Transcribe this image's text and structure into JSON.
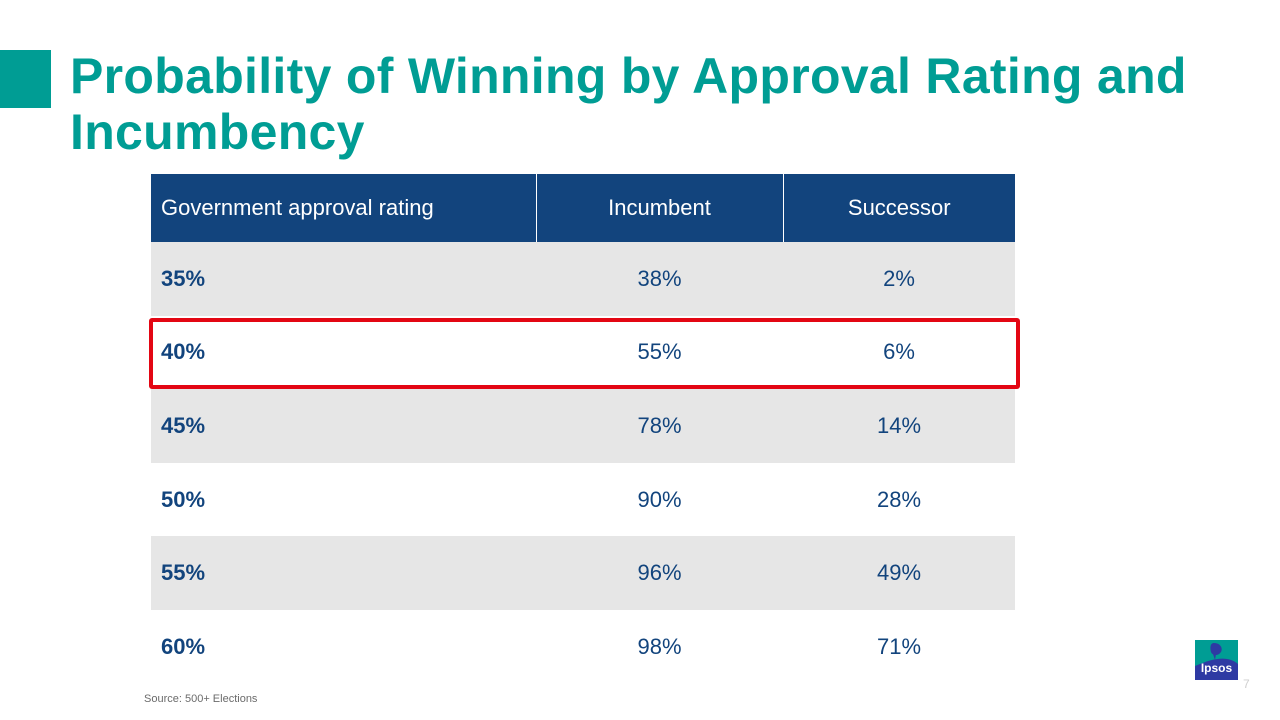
{
  "slide": {
    "title": "Probability of Winning by Approval Rating and Incumbency",
    "source": "Source: 500+ Elections",
    "page_number": "7",
    "logo_text": "Ipsos"
  },
  "table": {
    "headers": [
      "Government approval rating",
      "Incumbent",
      "Successor"
    ],
    "rows": [
      {
        "rating": "35%",
        "incumbent": "38%",
        "successor": "2%"
      },
      {
        "rating": "40%",
        "incumbent": "55%",
        "successor": "6%",
        "highlighted": true
      },
      {
        "rating": "45%",
        "incumbent": "78%",
        "successor": "14%"
      },
      {
        "rating": "50%",
        "incumbent": "90%",
        "successor": "28%"
      },
      {
        "rating": "55%",
        "incumbent": "96%",
        "successor": "49%"
      },
      {
        "rating": "60%",
        "incumbent": "98%",
        "successor": "71%"
      }
    ]
  },
  "colors": {
    "accent": "#009d94",
    "header_bg": "#12447d",
    "highlight": "#e30613",
    "row_shade": "#e6e6e6",
    "logo_bg": "#2e3aa3"
  }
}
